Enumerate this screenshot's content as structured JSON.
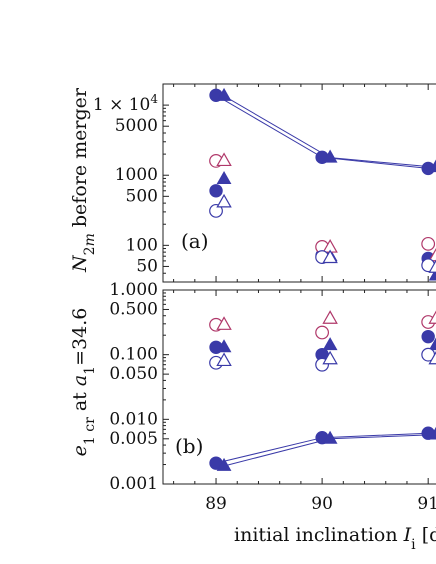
{
  "chart_data": [
    {
      "type": "scatter",
      "panel_label": "(a)",
      "ylabel_html": "N<tspan baseline-shift='sub' font-size='14'>2</tspan><tspan baseline-shift='sub' font-size='14' font-style='italic'>m</tspan> before merger",
      "yscale": "log",
      "ylim": [
        30,
        20000
      ],
      "xlim": [
        88.5,
        91.3
      ],
      "ytick_labels": [
        {
          "value": 10000,
          "label": "1 × 10",
          "sup": "4"
        },
        {
          "value": 5000,
          "label": "5000"
        },
        {
          "value": 1000,
          "label": "1000"
        },
        {
          "value": 500,
          "label": "500"
        },
        {
          "value": 100,
          "label": "100"
        },
        {
          "value": 50,
          "label": "50"
        }
      ],
      "series": [
        {
          "marker": "circle",
          "filled": true,
          "color": "#3a3aa8",
          "connected": true,
          "points": [
            [
              89,
              13800
            ],
            [
              90,
              1800
            ],
            [
              91,
              1250
            ]
          ]
        },
        {
          "marker": "triangle",
          "filled": true,
          "color": "#3a3aa8",
          "connected": true,
          "points": [
            [
              89,
              13500
            ],
            [
              90,
              1780
            ],
            [
              91,
              1300
            ]
          ]
        },
        {
          "marker": "circle",
          "filled": true,
          "color": "#3a3aa8",
          "connected": false,
          "points": [
            [
              89,
              600
            ],
            [
              90,
              72
            ],
            [
              91,
              65
            ]
          ]
        },
        {
          "marker": "triangle",
          "filled": true,
          "color": "#3a3aa8",
          "connected": false,
          "points": [
            [
              89,
              880
            ],
            [
              90,
              70
            ],
            [
              91,
              37
            ]
          ]
        },
        {
          "marker": "circle",
          "filled": false,
          "color": "#b0386a",
          "connected": false,
          "points": [
            [
              89,
              1600
            ],
            [
              90,
              95
            ],
            [
              91,
              105
            ]
          ]
        },
        {
          "marker": "triangle",
          "filled": false,
          "color": "#b0386a",
          "connected": false,
          "points": [
            [
              89,
              1600
            ],
            [
              90,
              93
            ],
            [
              91,
              70
            ]
          ]
        },
        {
          "marker": "circle",
          "filled": false,
          "color": "#3a3aa8",
          "connected": false,
          "points": [
            [
              89,
              310
            ],
            [
              90,
              68
            ],
            [
              91,
              52
            ]
          ]
        },
        {
          "marker": "triangle",
          "filled": false,
          "color": "#3a3aa8",
          "connected": false,
          "points": [
            [
              89,
              410
            ],
            [
              90,
              66
            ],
            [
              91,
              48
            ]
          ]
        }
      ]
    },
    {
      "type": "scatter",
      "panel_label": "(b)",
      "ylabel_html": "e<tspan baseline-shift='sub' font-size='14'>1 cr</tspan> at a<tspan baseline-shift='sub' font-size='14'>1</tspan>=34.6",
      "yscale": "log",
      "ylim": [
        0.001,
        1.0
      ],
      "xlim": [
        88.5,
        91.3
      ],
      "ytick_labels": [
        {
          "value": 1.0,
          "label": "1.000"
        },
        {
          "value": 0.5,
          "label": "0.500"
        },
        {
          "value": 0.1,
          "label": "0.100"
        },
        {
          "value": 0.05,
          "label": "0.050"
        },
        {
          "value": 0.01,
          "label": "0.010"
        },
        {
          "value": 0.005,
          "label": "0.005"
        },
        {
          "value": 0.001,
          "label": "0.001"
        }
      ],
      "xticks": [
        89,
        90,
        91
      ],
      "xlabel_html": "initial inclination I<tspan baseline-shift='sub' font-size='14'>i</tspan> [d",
      "series": [
        {
          "marker": "circle",
          "filled": true,
          "color": "#3a3aa8",
          "connected": true,
          "points": [
            [
              89,
              0.0021
            ],
            [
              90,
              0.0052
            ],
            [
              91,
              0.0061
            ]
          ]
        },
        {
          "marker": "triangle",
          "filled": true,
          "color": "#3a3aa8",
          "connected": true,
          "points": [
            [
              89,
              0.0019
            ],
            [
              90,
              0.005
            ],
            [
              91,
              0.0058
            ]
          ]
        },
        {
          "marker": "circle",
          "filled": false,
          "color": "#b0386a",
          "connected": false,
          "points": [
            [
              89,
              0.29
            ],
            [
              90,
              0.22
            ],
            [
              91,
              0.32
            ]
          ]
        },
        {
          "marker": "triangle",
          "filled": false,
          "color": "#b0386a",
          "connected": false,
          "points": [
            [
              89,
              0.29
            ],
            [
              90,
              0.36
            ],
            [
              91,
              0.36
            ]
          ]
        },
        {
          "marker": "circle",
          "filled": true,
          "color": "#3a3aa8",
          "connected": false,
          "points": [
            [
              89,
              0.13
            ],
            [
              90,
              0.1
            ],
            [
              91,
              0.19
            ]
          ]
        },
        {
          "marker": "triangle",
          "filled": true,
          "color": "#3a3aa8",
          "connected": false,
          "points": [
            [
              89,
              0.13
            ],
            [
              90,
              0.14
            ],
            [
              91,
              0.14
            ]
          ]
        },
        {
          "marker": "circle",
          "filled": false,
          "color": "#3a3aa8",
          "connected": false,
          "points": [
            [
              89,
              0.075
            ],
            [
              90,
              0.07
            ],
            [
              91,
              0.1
            ]
          ]
        },
        {
          "marker": "triangle",
          "filled": false,
          "color": "#3a3aa8",
          "connected": false,
          "points": [
            [
              89,
              0.08
            ],
            [
              90,
              0.085
            ],
            [
              91,
              0.085
            ]
          ]
        }
      ]
    }
  ]
}
